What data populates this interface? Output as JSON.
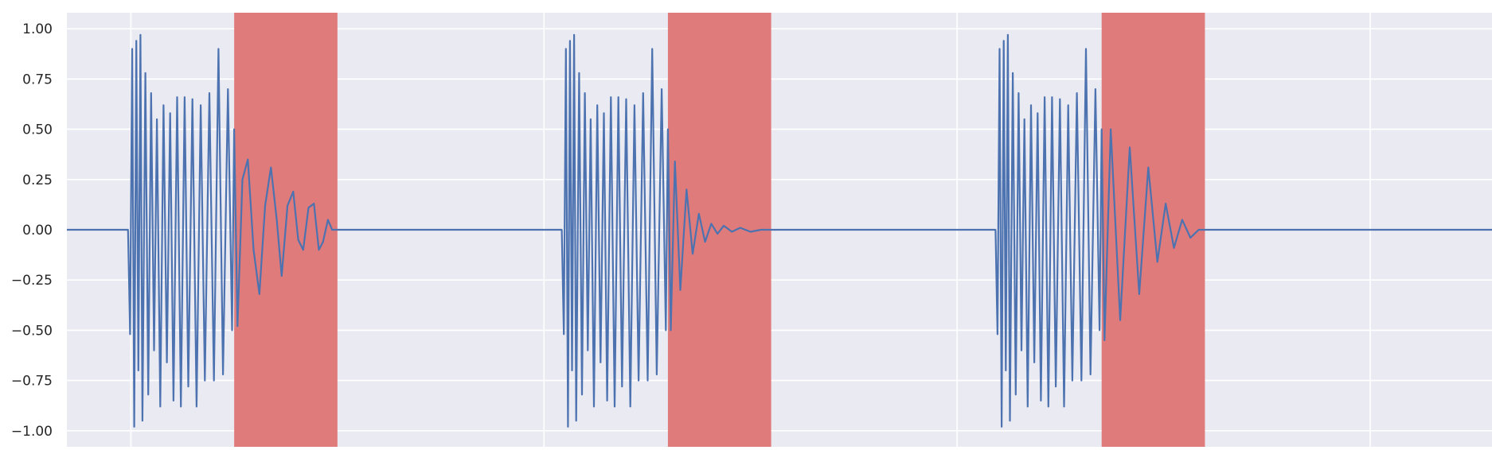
{
  "chart_data": {
    "type": "line",
    "title": "",
    "xlabel": "",
    "ylabel": "",
    "ylim": [
      -1.08,
      1.08
    ],
    "xlim": [
      0,
      3.45
    ],
    "x_ticks": [
      0.155,
      1.155,
      2.155,
      3.155
    ],
    "y_ticks": [
      1.0,
      0.75,
      0.5,
      0.25,
      0.0,
      -0.25,
      -0.5,
      -0.75,
      -1.0
    ],
    "y_tick_labels": [
      "1.00",
      "0.75",
      "0.50",
      "0.25",
      "0.00",
      "−0.25",
      "−0.50",
      "−0.75",
      "−1.00"
    ],
    "grid": true,
    "colors": {
      "background": "#eaeaf2",
      "grid": "#ffffff",
      "line": "#4c72b0",
      "highlight": "#e07b7b"
    },
    "highlight_regions": [
      {
        "x_start": 0.405,
        "x_end": 0.655
      },
      {
        "x_start": 1.455,
        "x_end": 1.705
      },
      {
        "x_start": 2.505,
        "x_end": 2.755
      }
    ],
    "series": [
      {
        "values": [
          [
            0.0,
            0.0
          ],
          [
            0.148,
            0.0
          ],
          [
            0.153,
            -0.52
          ],
          [
            0.158,
            0.9
          ],
          [
            0.163,
            -0.98
          ],
          [
            0.168,
            0.94
          ],
          [
            0.173,
            -0.7
          ],
          [
            0.178,
            0.97
          ],
          [
            0.183,
            -0.95
          ],
          [
            0.19,
            0.78
          ],
          [
            0.197,
            -0.82
          ],
          [
            0.204,
            0.68
          ],
          [
            0.211,
            -0.6
          ],
          [
            0.218,
            0.55
          ],
          [
            0.226,
            -0.88
          ],
          [
            0.234,
            0.62
          ],
          [
            0.242,
            -0.66
          ],
          [
            0.25,
            0.58
          ],
          [
            0.258,
            -0.85
          ],
          [
            0.267,
            0.66
          ],
          [
            0.276,
            -0.88
          ],
          [
            0.285,
            0.66
          ],
          [
            0.294,
            -0.78
          ],
          [
            0.304,
            0.65
          ],
          [
            0.314,
            -0.88
          ],
          [
            0.324,
            0.62
          ],
          [
            0.334,
            -0.75
          ],
          [
            0.345,
            0.68
          ],
          [
            0.356,
            -0.75
          ],
          [
            0.367,
            0.9
          ],
          [
            0.378,
            -0.72
          ],
          [
            0.39,
            0.7
          ],
          [
            0.4,
            -0.5
          ],
          [
            0.405,
            0.5
          ],
          [
            0.413,
            -0.48
          ],
          [
            0.425,
            0.25
          ],
          [
            0.438,
            0.35
          ],
          [
            0.452,
            -0.1
          ],
          [
            0.466,
            -0.32
          ],
          [
            0.48,
            0.12
          ],
          [
            0.494,
            0.31
          ],
          [
            0.508,
            0.05
          ],
          [
            0.52,
            -0.23
          ],
          [
            0.534,
            0.12
          ],
          [
            0.548,
            0.19
          ],
          [
            0.56,
            -0.05
          ],
          [
            0.572,
            -0.1
          ],
          [
            0.585,
            0.11
          ],
          [
            0.598,
            0.13
          ],
          [
            0.61,
            -0.1
          ],
          [
            0.62,
            -0.06
          ],
          [
            0.632,
            0.05
          ],
          [
            0.642,
            0.0
          ],
          [
            0.655,
            0.0
          ],
          [
            1.198,
            0.0
          ],
          [
            1.203,
            -0.52
          ],
          [
            1.208,
            0.9
          ],
          [
            1.213,
            -0.98
          ],
          [
            1.218,
            0.94
          ],
          [
            1.223,
            -0.7
          ],
          [
            1.228,
            0.97
          ],
          [
            1.233,
            -0.95
          ],
          [
            1.24,
            0.78
          ],
          [
            1.247,
            -0.82
          ],
          [
            1.254,
            0.68
          ],
          [
            1.261,
            -0.6
          ],
          [
            1.268,
            0.55
          ],
          [
            1.276,
            -0.88
          ],
          [
            1.284,
            0.62
          ],
          [
            1.292,
            -0.66
          ],
          [
            1.3,
            0.58
          ],
          [
            1.308,
            -0.85
          ],
          [
            1.317,
            0.66
          ],
          [
            1.326,
            -0.88
          ],
          [
            1.335,
            0.66
          ],
          [
            1.344,
            -0.78
          ],
          [
            1.354,
            0.65
          ],
          [
            1.364,
            -0.88
          ],
          [
            1.374,
            0.62
          ],
          [
            1.384,
            -0.75
          ],
          [
            1.395,
            0.68
          ],
          [
            1.406,
            -0.75
          ],
          [
            1.417,
            0.9
          ],
          [
            1.428,
            -0.72
          ],
          [
            1.44,
            0.7
          ],
          [
            1.45,
            -0.5
          ],
          [
            1.455,
            0.5
          ],
          [
            1.462,
            -0.5
          ],
          [
            1.472,
            0.34
          ],
          [
            1.485,
            -0.3
          ],
          [
            1.5,
            0.2
          ],
          [
            1.515,
            -0.12
          ],
          [
            1.53,
            0.08
          ],
          [
            1.545,
            -0.06
          ],
          [
            1.56,
            0.03
          ],
          [
            1.575,
            -0.02
          ],
          [
            1.59,
            0.02
          ],
          [
            1.61,
            -0.01
          ],
          [
            1.63,
            0.01
          ],
          [
            1.655,
            -0.01
          ],
          [
            1.68,
            0.0
          ],
          [
            1.705,
            0.0
          ],
          [
            2.248,
            0.0
          ],
          [
            2.253,
            -0.52
          ],
          [
            2.258,
            0.9
          ],
          [
            2.263,
            -0.98
          ],
          [
            2.268,
            0.94
          ],
          [
            2.273,
            -0.7
          ],
          [
            2.278,
            0.97
          ],
          [
            2.283,
            -0.95
          ],
          [
            2.29,
            0.78
          ],
          [
            2.297,
            -0.82
          ],
          [
            2.304,
            0.68
          ],
          [
            2.311,
            -0.6
          ],
          [
            2.318,
            0.55
          ],
          [
            2.326,
            -0.88
          ],
          [
            2.334,
            0.62
          ],
          [
            2.342,
            -0.66
          ],
          [
            2.35,
            0.58
          ],
          [
            2.358,
            -0.85
          ],
          [
            2.367,
            0.66
          ],
          [
            2.376,
            -0.88
          ],
          [
            2.385,
            0.66
          ],
          [
            2.394,
            -0.78
          ],
          [
            2.404,
            0.65
          ],
          [
            2.414,
            -0.88
          ],
          [
            2.424,
            0.62
          ],
          [
            2.434,
            -0.75
          ],
          [
            2.445,
            0.68
          ],
          [
            2.456,
            -0.75
          ],
          [
            2.467,
            0.9
          ],
          [
            2.478,
            -0.72
          ],
          [
            2.49,
            0.7
          ],
          [
            2.5,
            -0.5
          ],
          [
            2.505,
            0.5
          ],
          [
            2.512,
            -0.55
          ],
          [
            2.527,
            0.5
          ],
          [
            2.55,
            -0.45
          ],
          [
            2.573,
            0.41
          ],
          [
            2.596,
            -0.32
          ],
          [
            2.618,
            0.31
          ],
          [
            2.64,
            -0.16
          ],
          [
            2.66,
            0.13
          ],
          [
            2.68,
            -0.09
          ],
          [
            2.7,
            0.05
          ],
          [
            2.72,
            -0.04
          ],
          [
            2.74,
            0.0
          ],
          [
            2.755,
            0.0
          ],
          [
            3.45,
            0.0
          ]
        ]
      }
    ]
  }
}
